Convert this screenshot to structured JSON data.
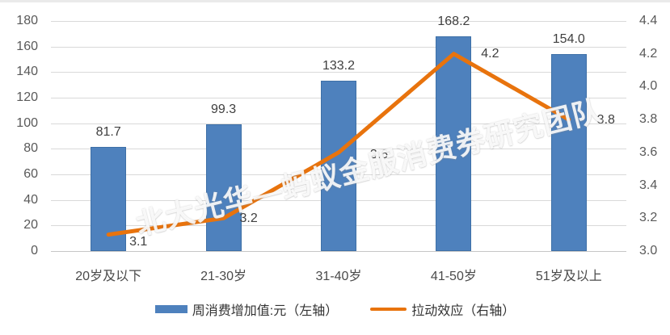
{
  "chart_data": {
    "type": "bar+line combo",
    "categories": [
      "20岁及以下",
      "21-30岁",
      "31-40岁",
      "41-50岁",
      "51岁及以上"
    ],
    "series": [
      {
        "name": "周消费增加值:元（左轴）",
        "type": "bar",
        "axis": "left",
        "color": "#4e81bd",
        "values": [
          81.7,
          99.3,
          133.2,
          168.2,
          154.0
        ],
        "labels": [
          "81.7",
          "99.3",
          "133.2",
          "168.2",
          "154.0"
        ]
      },
      {
        "name": "拉动效应（右轴）",
        "type": "line",
        "axis": "right",
        "color": "#e8730d",
        "values": [
          3.1,
          3.2,
          3.6,
          4.2,
          3.8
        ],
        "labels": [
          "3.1",
          "3.2",
          "3.6",
          "4.2",
          "3.8"
        ]
      }
    ],
    "left_axis": {
      "min": 0,
      "max": 180,
      "step": 20,
      "ticks": [
        "0",
        "20",
        "40",
        "60",
        "80",
        "100",
        "120",
        "140",
        "160",
        "180"
      ]
    },
    "right_axis": {
      "min": 3.0,
      "max": 4.4,
      "step": 0.2,
      "ticks": [
        "3.0",
        "3.2",
        "3.4",
        "3.6",
        "3.8",
        "4.0",
        "4.2",
        "4.4"
      ]
    },
    "grid": "horizontal gridlines from left axis",
    "legend_position": "bottom"
  },
  "legend": {
    "bar_label": "周消费增加值:元（左轴）",
    "line_label": "拉动效应（右轴）"
  },
  "watermark": {
    "text": "北大光华—蚂蚁金服消费券研究团队"
  },
  "colors": {
    "bar": "#4e81bd",
    "line": "#e8730d",
    "grid": "#d9d9d9",
    "tick_text": "#595959",
    "label_text": "#3f3f3f"
  }
}
